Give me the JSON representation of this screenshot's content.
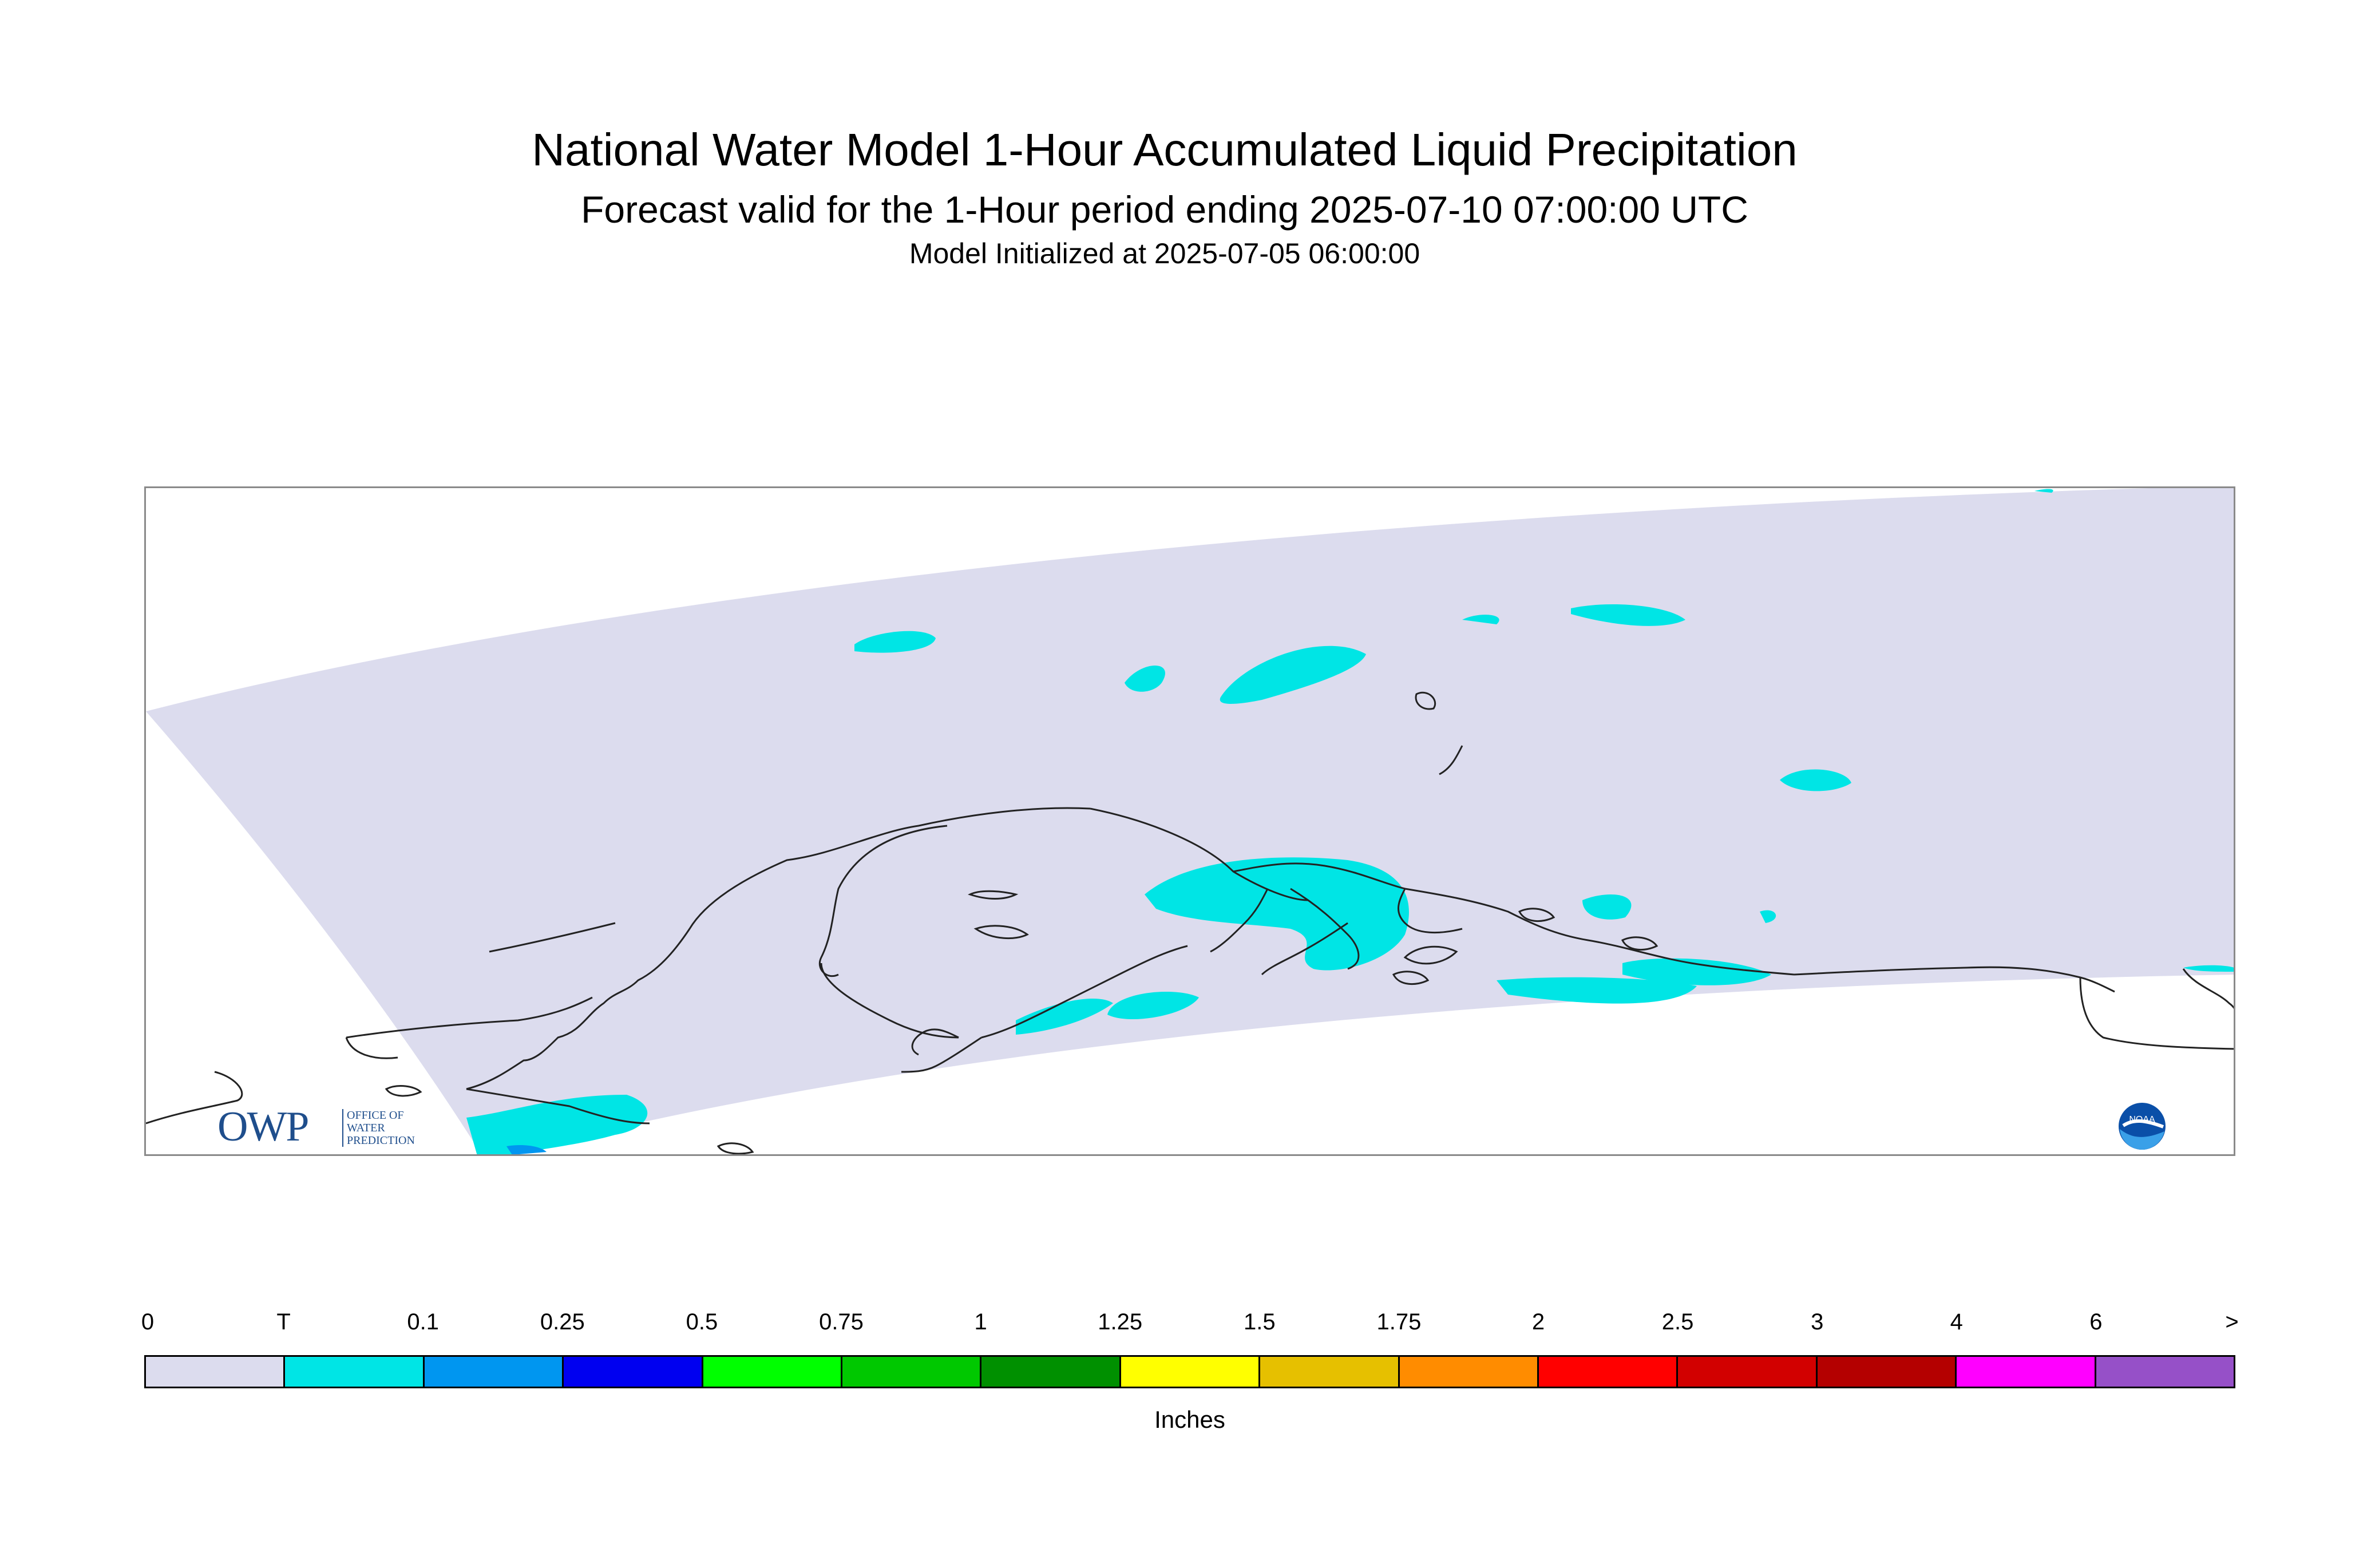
{
  "title": "National Water Model 1-Hour Accumulated Liquid Precipitation",
  "subtitle": "Forecast valid for the 1-Hour period ending 2025-07-10 07:00:00 UTC",
  "init_line": "Model Initialized at 2025-07-05 06:00:00",
  "logos": {
    "owp_big": "OWP",
    "owp_small": "OFFICE OF\nWATER\nPREDICTION",
    "noaa": "NOAA"
  },
  "colors": {
    "domain_fill": "#dcdcee",
    "precip_trace": "#00e5e5",
    "precip_light": "#0096f0",
    "coastline": "#222222",
    "frame": "#8a8a8a"
  },
  "legend": {
    "units": "Inches",
    "ticks": [
      "0",
      "T",
      "0.1",
      "0.25",
      "0.5",
      "0.75",
      "1",
      "1.25",
      "1.5",
      "1.75",
      "2",
      "2.5",
      "3",
      "4",
      "6",
      ">"
    ],
    "colors": [
      "#dcdcee",
      "#00e5e5",
      "#0096f0",
      "#0000f0",
      "#00ff00",
      "#00c800",
      "#009000",
      "#ffff00",
      "#e6c000",
      "#ff8c00",
      "#ff0000",
      "#d20000",
      "#b40000",
      "#ff00ff",
      "#9650c8"
    ]
  }
}
